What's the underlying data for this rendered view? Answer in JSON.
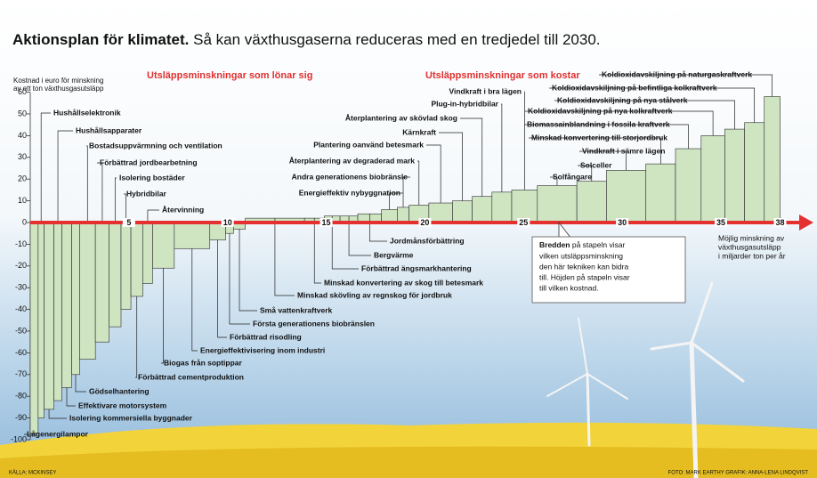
{
  "chart_data": {
    "type": "cost-curve",
    "title": "Aktionsplan för klimatet.",
    "subtitle": "Så kan växthusgaserna reduceras med en tredjedel till 2030.",
    "y_label": [
      "Kostnad i euro för minskning",
      "av ett ton växthusgasutsläpp"
    ],
    "headers": [
      "Utsläppsminskningar som lönar sig",
      "Utsläppsminskningar som kostar"
    ],
    "x_label": [
      "Möjlig minskning av",
      "växthusgasutsläpp",
      "i miljarder ton per år"
    ],
    "note": {
      "bold": "Bredden",
      "lines": [
        "på stapeln visar",
        "vilken utsläppsminskning",
        "den här tekniken kan bidra",
        "till. Höjden på stapeln visar",
        "till vilken kostnad."
      ]
    },
    "source": "KÄLLA: MCKINSEY",
    "credit": "FOTO: MARK EARTHY   GRAFIK: ANNA-LENA LINDQVIST",
    "color": "#cfe5c2",
    "xlim": [
      0,
      38
    ],
    "xticks": [
      5,
      10,
      15,
      20,
      25,
      30,
      35,
      38
    ],
    "ylim": [
      -100,
      60
    ],
    "yticks": [
      -100,
      -90,
      -80,
      -70,
      -60,
      -50,
      -40,
      -30,
      -20,
      -10,
      0,
      10,
      20,
      30,
      40,
      50,
      60
    ],
    "measures": [
      {
        "name": "Lågenergilampor",
        "width": 0.4,
        "value": -97
      },
      {
        "name": "Hushållselektronik",
        "width": 0.3,
        "value": -90
      },
      {
        "name": "Isolering kommersiella byggnader",
        "width": 0.5,
        "value": -86
      },
      {
        "name": "Hushållsapparater",
        "width": 0.4,
        "value": -82
      },
      {
        "name": "Effektivare motorsystem",
        "width": 0.5,
        "value": -76
      },
      {
        "name": "Gödselhantering",
        "width": 0.4,
        "value": -70
      },
      {
        "name": "Bostadsuppvärmning och ventilation",
        "width": 0.8,
        "value": -63
      },
      {
        "name": "Förbättrad jordbearbetning",
        "width": 0.7,
        "value": -55
      },
      {
        "name": "Isolering bostäder",
        "width": 0.6,
        "value": -48
      },
      {
        "name": "Hybridbilar",
        "width": 0.5,
        "value": -40
      },
      {
        "name": "Förbättrad cementproduktion",
        "width": 0.6,
        "value": -34
      },
      {
        "name": "Återvinning",
        "width": 0.5,
        "value": -28
      },
      {
        "name": "Biogas från soptippar",
        "width": 1.1,
        "value": -21
      },
      {
        "name": "Energieffektivisering inom industri",
        "width": 1.8,
        "value": -12
      },
      {
        "name": "Förbättrad risodling",
        "width": 0.8,
        "value": -8
      },
      {
        "name": "Första generationens biobränslen",
        "width": 0.4,
        "value": -5
      },
      {
        "name": "Små vattenkraftverk",
        "width": 0.6,
        "value": -3
      },
      {
        "name": "Minskad skövling av regnskog för jordbruk",
        "width": 3.0,
        "value": 2
      },
      {
        "name": "Minskad konvertering av skog till betesmark",
        "width": 1.0,
        "value": 2
      },
      {
        "name": "Förbättrad ängsmarkhantering",
        "width": 0.8,
        "value": 3
      },
      {
        "name": "Bergvärme",
        "width": 0.9,
        "value": 3
      },
      {
        "name": "Jordmånsförbättring",
        "width": 1.2,
        "value": 4
      },
      {
        "name": "Energieffektiv nybyggnation",
        "width": 0.8,
        "value": 6
      },
      {
        "name": "Andra generationens biobränsle",
        "width": 0.6,
        "value": 7
      },
      {
        "name": "Återplantering av degraderad mark",
        "width": 1.0,
        "value": 8
      },
      {
        "name": "Plantering oanvänd betesmark",
        "width": 1.2,
        "value": 9
      },
      {
        "name": "Kärnkraft",
        "width": 1.0,
        "value": 10
      },
      {
        "name": "Återplantering av skövlad skog",
        "width": 1.0,
        "value": 12
      },
      {
        "name": "Plug-in-hybridbilar",
        "width": 1.0,
        "value": 14
      },
      {
        "name": "Vindkraft i bra lägen",
        "width": 1.3,
        "value": 15
      },
      {
        "name": "Solfångare",
        "width": 2.0,
        "value": 17
      },
      {
        "name": "Solceller",
        "width": 1.5,
        "value": 19
      },
      {
        "name": "Vindkraft i sämre lägen",
        "width": 2.0,
        "value": 24
      },
      {
        "name": "Minskad konvertering till storjordbruk",
        "width": 1.5,
        "value": 27
      },
      {
        "name": "Biomassainblandning i fossila kraftverk",
        "width": 1.3,
        "value": 34
      },
      {
        "name": "Koldioxidavskiljning på nya kolkraftverk",
        "width": 1.2,
        "value": 40
      },
      {
        "name": "Koldioxidavskiljning på nya stålverk",
        "width": 1.0,
        "value": 43
      },
      {
        "name": "Koldioxidavskiljning på befintliga kolkraftverk",
        "width": 1.0,
        "value": 46
      },
      {
        "name": "Koldioxidavskiljning på naturgaskraftverk",
        "width": 0.8,
        "value": 58
      }
    ]
  }
}
